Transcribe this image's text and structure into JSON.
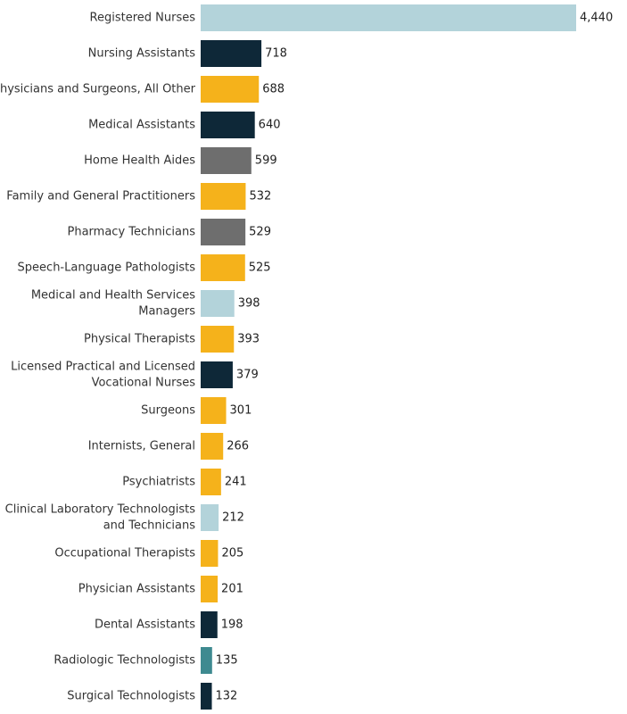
{
  "chart_data": {
    "type": "bar",
    "orientation": "horizontal",
    "title": "",
    "xlabel": "",
    "ylabel": "",
    "xlim": [
      0,
      4440
    ],
    "grid": false,
    "legend": "none",
    "bars": [
      {
        "label": [
          "Registered Nurses"
        ],
        "value": 4440,
        "value_label": "4,440",
        "color": "#b3d3da"
      },
      {
        "label": [
          "Nursing Assistants"
        ],
        "value": 718,
        "value_label": "718",
        "color": "#0e2838"
      },
      {
        "label": [
          "Physicians and Surgeons, All Other"
        ],
        "value": 688,
        "value_label": "688",
        "color": "#f5b21b"
      },
      {
        "label": [
          "Medical Assistants"
        ],
        "value": 640,
        "value_label": "640",
        "color": "#0e2838"
      },
      {
        "label": [
          "Home Health Aides"
        ],
        "value": 599,
        "value_label": "599",
        "color": "#6e6e6e"
      },
      {
        "label": [
          "Family and General Practitioners"
        ],
        "value": 532,
        "value_label": "532",
        "color": "#f5b21b"
      },
      {
        "label": [
          "Pharmacy Technicians"
        ],
        "value": 529,
        "value_label": "529",
        "color": "#6e6e6e"
      },
      {
        "label": [
          "Speech-Language Pathologists"
        ],
        "value": 525,
        "value_label": "525",
        "color": "#f5b21b"
      },
      {
        "label": [
          "Medical and Health Services",
          "Managers"
        ],
        "value": 398,
        "value_label": "398",
        "color": "#b3d3da"
      },
      {
        "label": [
          "Physical Therapists"
        ],
        "value": 393,
        "value_label": "393",
        "color": "#f5b21b"
      },
      {
        "label": [
          "Licensed Practical and Licensed",
          "Vocational Nurses"
        ],
        "value": 379,
        "value_label": "379",
        "color": "#0e2838"
      },
      {
        "label": [
          "Surgeons"
        ],
        "value": 301,
        "value_label": "301",
        "color": "#f5b21b"
      },
      {
        "label": [
          "Internists, General"
        ],
        "value": 266,
        "value_label": "266",
        "color": "#f5b21b"
      },
      {
        "label": [
          "Psychiatrists"
        ],
        "value": 241,
        "value_label": "241",
        "color": "#f5b21b"
      },
      {
        "label": [
          "Clinical Laboratory Technologists",
          "and Technicians"
        ],
        "value": 212,
        "value_label": "212",
        "color": "#b3d3da"
      },
      {
        "label": [
          "Occupational Therapists"
        ],
        "value": 205,
        "value_label": "205",
        "color": "#f5b21b"
      },
      {
        "label": [
          "Physician Assistants"
        ],
        "value": 201,
        "value_label": "201",
        "color": "#f5b21b"
      },
      {
        "label": [
          "Dental Assistants"
        ],
        "value": 198,
        "value_label": "198",
        "color": "#0e2838"
      },
      {
        "label": [
          "Radiologic Technologists"
        ],
        "value": 135,
        "value_label": "135",
        "color": "#3e8a90"
      },
      {
        "label": [
          "Surgical Technologists"
        ],
        "value": 132,
        "value_label": "132",
        "color": "#0e2838"
      }
    ]
  }
}
